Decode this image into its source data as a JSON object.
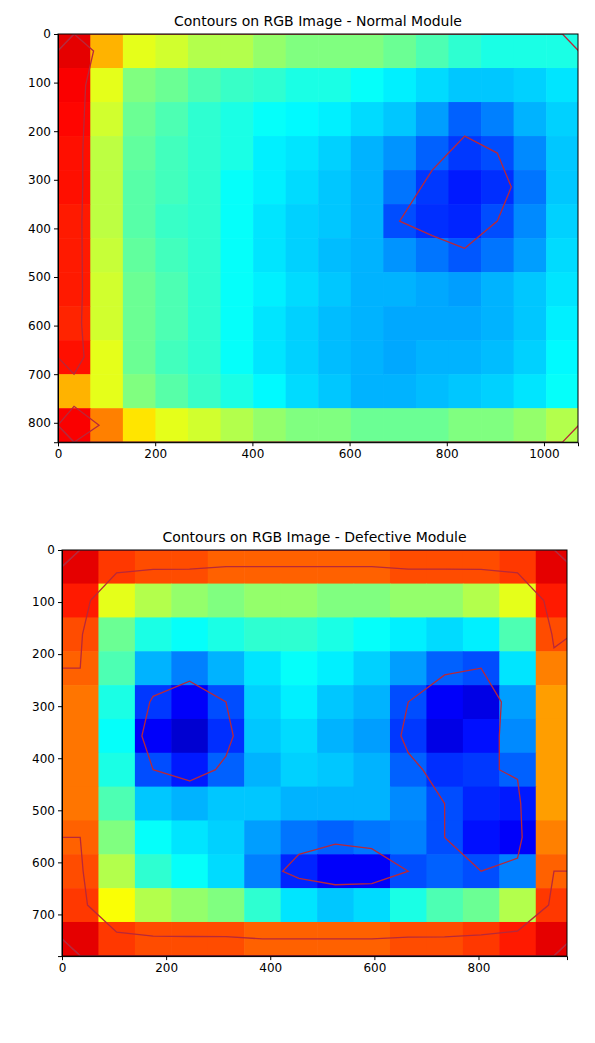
{
  "chart_data": [
    {
      "type": "heatmap",
      "title": "Contours on RGB Image - Normal Module",
      "xlim": [
        0,
        1070
      ],
      "ylim": [
        840,
        0
      ],
      "xticks": [
        0,
        200,
        400,
        600,
        800,
        1000
      ],
      "yticks": [
        0,
        100,
        200,
        300,
        400,
        500,
        600,
        700,
        800
      ],
      "x": [
        33,
        100,
        167,
        234,
        301,
        368,
        435,
        502,
        569,
        636,
        703,
        770,
        837,
        904,
        971,
        1038
      ],
      "y": [
        35,
        105,
        175,
        245,
        315,
        385,
        455,
        525,
        595,
        665,
        735,
        805
      ],
      "color_range": [
        0,
        1
      ],
      "contour_levels": [
        0.2,
        0.78
      ],
      "z": [
        [
          0.9,
          0.7,
          0.6,
          0.58,
          0.55,
          0.55,
          0.52,
          0.5,
          0.5,
          0.5,
          0.48,
          0.45,
          0.42,
          0.4,
          0.4,
          0.4
        ],
        [
          0.88,
          0.6,
          0.5,
          0.48,
          0.45,
          0.43,
          0.42,
          0.4,
          0.4,
          0.38,
          0.36,
          0.34,
          0.32,
          0.32,
          0.33,
          0.35
        ],
        [
          0.87,
          0.58,
          0.48,
          0.45,
          0.42,
          0.4,
          0.38,
          0.37,
          0.36,
          0.34,
          0.32,
          0.28,
          0.22,
          0.25,
          0.3,
          0.33
        ],
        [
          0.86,
          0.56,
          0.47,
          0.44,
          0.42,
          0.4,
          0.36,
          0.35,
          0.33,
          0.3,
          0.27,
          0.22,
          0.18,
          0.2,
          0.26,
          0.32
        ],
        [
          0.86,
          0.56,
          0.46,
          0.44,
          0.42,
          0.38,
          0.36,
          0.34,
          0.32,
          0.3,
          0.24,
          0.18,
          0.15,
          0.17,
          0.24,
          0.32
        ],
        [
          0.85,
          0.56,
          0.46,
          0.43,
          0.42,
          0.38,
          0.35,
          0.33,
          0.32,
          0.3,
          0.2,
          0.17,
          0.16,
          0.2,
          0.26,
          0.33
        ],
        [
          0.85,
          0.57,
          0.47,
          0.44,
          0.42,
          0.38,
          0.35,
          0.33,
          0.31,
          0.3,
          0.27,
          0.24,
          0.21,
          0.24,
          0.28,
          0.34
        ],
        [
          0.85,
          0.58,
          0.48,
          0.45,
          0.42,
          0.38,
          0.36,
          0.34,
          0.32,
          0.3,
          0.3,
          0.29,
          0.28,
          0.3,
          0.32,
          0.35
        ],
        [
          0.84,
          0.58,
          0.48,
          0.45,
          0.42,
          0.38,
          0.35,
          0.33,
          0.31,
          0.3,
          0.29,
          0.29,
          0.29,
          0.3,
          0.32,
          0.36
        ],
        [
          0.86,
          0.6,
          0.48,
          0.44,
          0.42,
          0.38,
          0.35,
          0.33,
          0.31,
          0.3,
          0.29,
          0.3,
          0.3,
          0.31,
          0.33,
          0.37
        ],
        [
          0.7,
          0.6,
          0.5,
          0.46,
          0.43,
          0.4,
          0.37,
          0.34,
          0.32,
          0.3,
          0.3,
          0.31,
          0.32,
          0.33,
          0.35,
          0.38
        ],
        [
          0.88,
          0.75,
          0.65,
          0.6,
          0.58,
          0.55,
          0.52,
          0.5,
          0.5,
          0.48,
          0.48,
          0.48,
          0.5,
          0.5,
          0.52,
          0.55
        ]
      ]
    },
    {
      "type": "heatmap",
      "title": "Contours on RGB Image - Defective Module",
      "xlim": [
        0,
        970
      ],
      "ylim": [
        780,
        0
      ],
      "xticks": [
        0,
        200,
        400,
        600,
        800
      ],
      "yticks": [
        0,
        100,
        200,
        300,
        400,
        500,
        600,
        700
      ],
      "x": [
        35,
        105,
        175,
        245,
        315,
        385,
        455,
        525,
        595,
        665,
        735,
        805,
        875,
        945
      ],
      "y": [
        32,
        97,
        162,
        227,
        292,
        357,
        422,
        487,
        552,
        617,
        682,
        747
      ],
      "color_range": [
        0,
        1
      ],
      "contour_levels": [
        0.2,
        0.78
      ],
      "z": [
        [
          0.9,
          0.82,
          0.8,
          0.8,
          0.78,
          0.78,
          0.78,
          0.78,
          0.78,
          0.8,
          0.8,
          0.8,
          0.82,
          0.9
        ],
        [
          0.85,
          0.6,
          0.55,
          0.52,
          0.5,
          0.52,
          0.52,
          0.5,
          0.5,
          0.52,
          0.52,
          0.55,
          0.6,
          0.85
        ],
        [
          0.8,
          0.48,
          0.4,
          0.38,
          0.4,
          0.42,
          0.42,
          0.4,
          0.38,
          0.36,
          0.34,
          0.36,
          0.45,
          0.8
        ],
        [
          0.78,
          0.45,
          0.3,
          0.25,
          0.3,
          0.35,
          0.38,
          0.36,
          0.33,
          0.28,
          0.22,
          0.2,
          0.35,
          0.75
        ],
        [
          0.76,
          0.4,
          0.18,
          0.12,
          0.2,
          0.33,
          0.36,
          0.32,
          0.3,
          0.2,
          0.12,
          0.1,
          0.28,
          0.72
        ],
        [
          0.76,
          0.38,
          0.12,
          0.08,
          0.17,
          0.32,
          0.34,
          0.3,
          0.28,
          0.18,
          0.1,
          0.14,
          0.26,
          0.72
        ],
        [
          0.76,
          0.4,
          0.2,
          0.15,
          0.22,
          0.3,
          0.33,
          0.32,
          0.3,
          0.22,
          0.17,
          0.18,
          0.22,
          0.72
        ],
        [
          0.76,
          0.45,
          0.32,
          0.3,
          0.32,
          0.32,
          0.3,
          0.3,
          0.3,
          0.26,
          0.2,
          0.16,
          0.15,
          0.72
        ],
        [
          0.78,
          0.5,
          0.38,
          0.35,
          0.33,
          0.28,
          0.24,
          0.22,
          0.24,
          0.25,
          0.2,
          0.14,
          0.12,
          0.75
        ],
        [
          0.8,
          0.55,
          0.42,
          0.38,
          0.34,
          0.25,
          0.16,
          0.12,
          0.12,
          0.2,
          0.22,
          0.2,
          0.25,
          0.78
        ],
        [
          0.82,
          0.62,
          0.55,
          0.52,
          0.5,
          0.42,
          0.35,
          0.32,
          0.34,
          0.4,
          0.45,
          0.48,
          0.55,
          0.82
        ],
        [
          0.9,
          0.82,
          0.8,
          0.8,
          0.8,
          0.78,
          0.78,
          0.78,
          0.78,
          0.8,
          0.8,
          0.82,
          0.85,
          0.9
        ]
      ]
    }
  ]
}
